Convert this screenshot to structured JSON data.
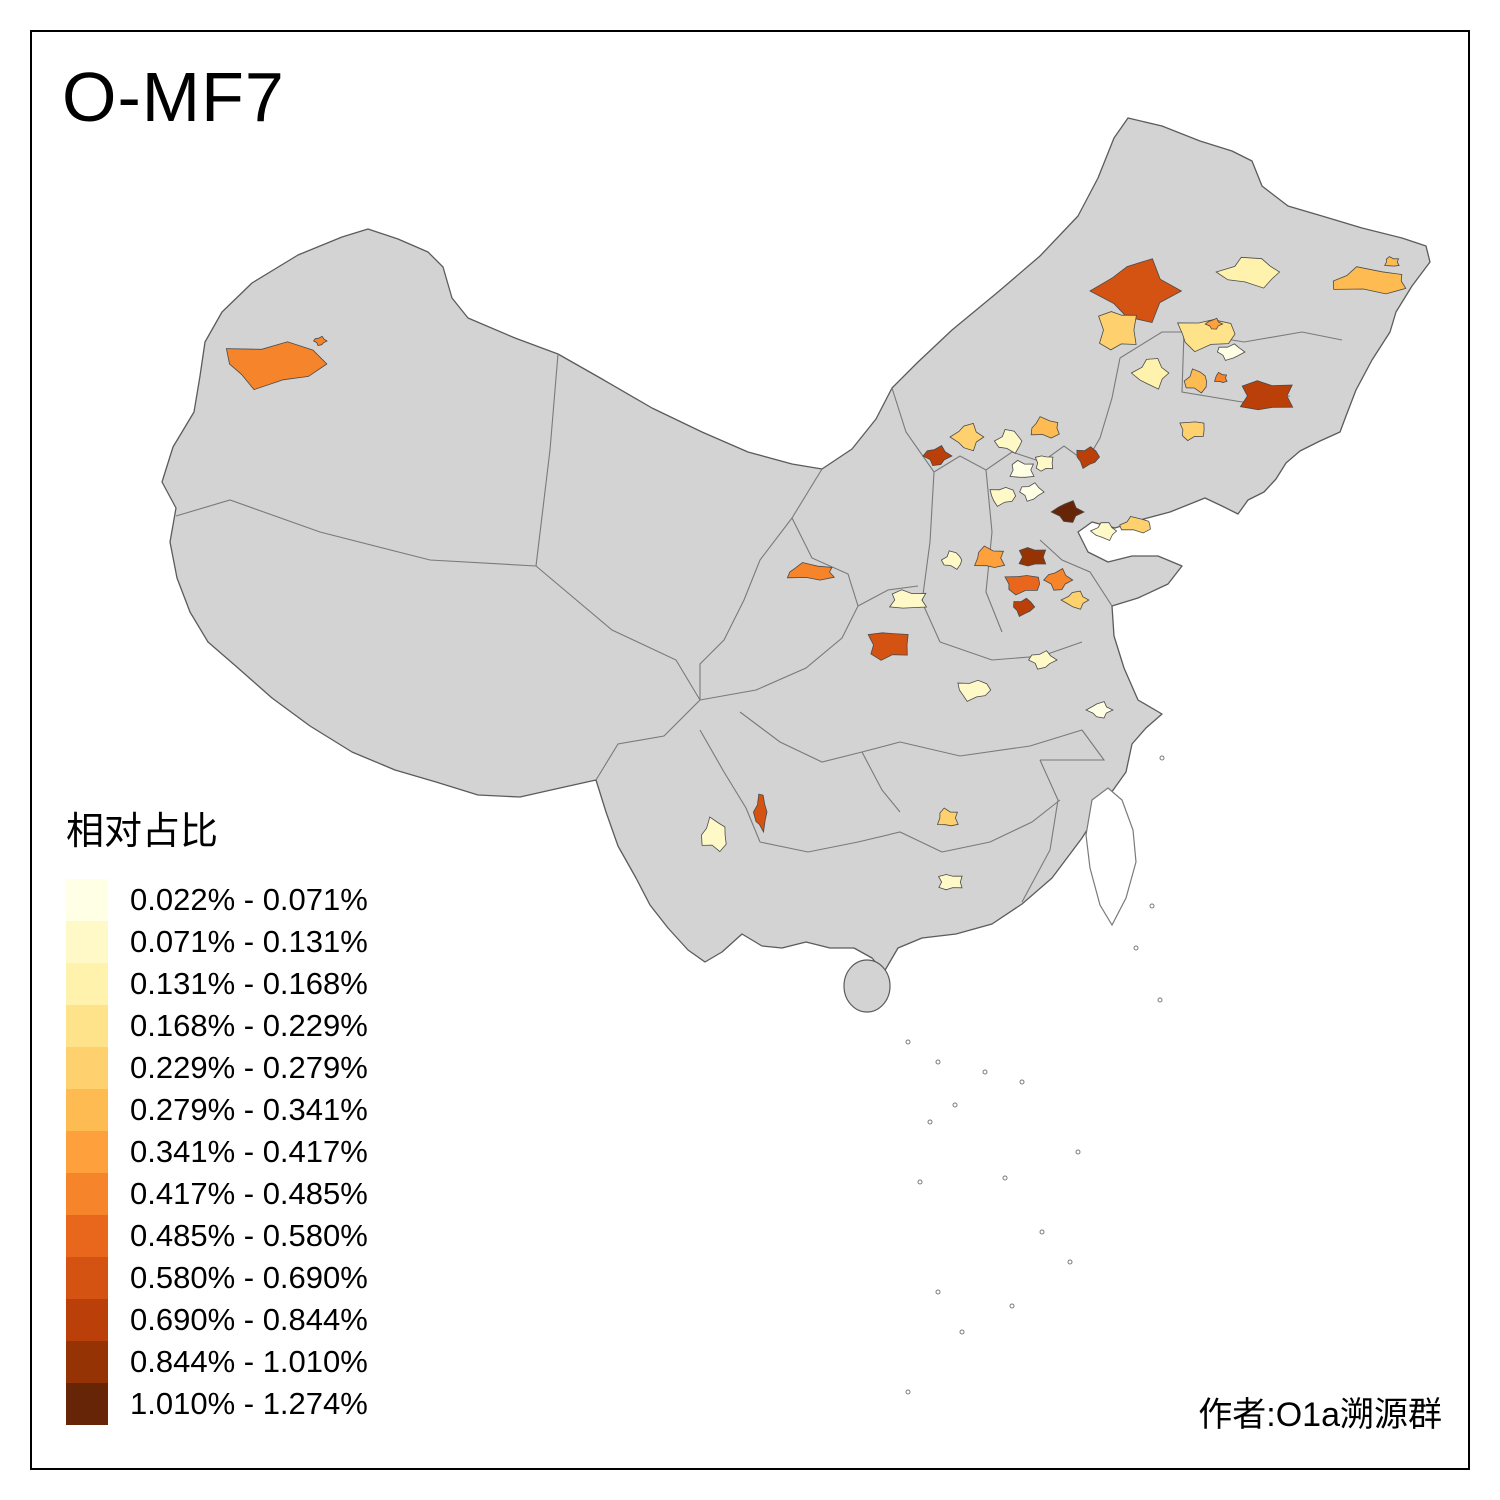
{
  "title": "O-MF7",
  "legend": {
    "title": "相对占比",
    "bins": [
      {
        "range": "0.022% - 0.071%",
        "color": "#FFFFE5"
      },
      {
        "range": "0.071% - 0.131%",
        "color": "#FFF9C8"
      },
      {
        "range": "0.131% - 0.168%",
        "color": "#FFF2AC"
      },
      {
        "range": "0.168% - 0.229%",
        "color": "#FEE38B"
      },
      {
        "range": "0.229% - 0.279%",
        "color": "#FED16E"
      },
      {
        "range": "0.279% - 0.341%",
        "color": "#FEBB52"
      },
      {
        "range": "0.341% - 0.417%",
        "color": "#FEA03C"
      },
      {
        "range": "0.417% - 0.485%",
        "color": "#F5842B"
      },
      {
        "range": "0.485% - 0.580%",
        "color": "#E8671D"
      },
      {
        "range": "0.580% - 0.690%",
        "color": "#D45212"
      },
      {
        "range": "0.690% - 0.844%",
        "color": "#BA3F09"
      },
      {
        "range": "0.844% - 1.010%",
        "color": "#963305"
      },
      {
        "range": "1.010% - 1.274%",
        "color": "#662506"
      }
    ]
  },
  "attribution": "作者:O1a溯源群",
  "map": {
    "base_fill": "#D3D3D3",
    "island_fill": "#FFFFFF",
    "outline": "#5B5B5B",
    "province_border": "#7A7A7A",
    "region_border": "#4A4A4A",
    "background": "#FFFFFF",
    "regions": [
      {
        "name": "w-xinjiang-large",
        "bin": 8
      },
      {
        "name": "w-xinjiang-dot",
        "bin": 8
      },
      {
        "name": "inner-mongolia-east-large",
        "bin": 10
      },
      {
        "name": "ne-pale-1",
        "bin": 3
      },
      {
        "name": "ne-orange-strip",
        "bin": 6
      },
      {
        "name": "ne-orange-dot",
        "bin": 6
      },
      {
        "name": "ne-light-1",
        "bin": 5
      },
      {
        "name": "ne-light-2",
        "bin": 4
      },
      {
        "name": "ne-white-cell",
        "bin": 1
      },
      {
        "name": "ne-orange-dot-2",
        "bin": 7
      },
      {
        "name": "ne-pale-2",
        "bin": 3
      },
      {
        "name": "ne-orange-2",
        "bin": 6
      },
      {
        "name": "ne-orange-dot-3",
        "bin": 8
      },
      {
        "name": "liaoning-dark",
        "bin": 11
      },
      {
        "name": "liaoning-light",
        "bin": 5
      },
      {
        "name": "hebei-ne-dark",
        "bin": 11
      },
      {
        "name": "shanxi-n-dark",
        "bin": 11
      },
      {
        "name": "hebei-nw-light",
        "bin": 5
      },
      {
        "name": "beijing-pale-1",
        "bin": 2
      },
      {
        "name": "hebei-light-orange",
        "bin": 6
      },
      {
        "name": "beijing-pale-2",
        "bin": 1
      },
      {
        "name": "tianjin-pale",
        "bin": 2
      },
      {
        "name": "hebei-pale-3",
        "bin": 2
      },
      {
        "name": "hebei-pale-4",
        "bin": 1
      },
      {
        "name": "bohai-coast-darkest",
        "bin": 13
      },
      {
        "name": "shandong-nw-pale",
        "bin": 2
      },
      {
        "name": "shandong-pen-light",
        "bin": 5
      },
      {
        "name": "hebei-s-orange",
        "bin": 7
      },
      {
        "name": "hebei-s-darkred",
        "bin": 12
      },
      {
        "name": "henan-n-orange",
        "bin": 9
      },
      {
        "name": "henan-n-darkred",
        "bin": 11
      },
      {
        "name": "shandong-w-orange",
        "bin": 8
      },
      {
        "name": "shandong-light",
        "bin": 5
      },
      {
        "name": "shanxi-pale",
        "bin": 2
      },
      {
        "name": "gansu-orange-bar",
        "bin": 8
      },
      {
        "name": "gansu-e-pale",
        "bin": 2
      },
      {
        "name": "shaanxi-orange",
        "bin": 10
      },
      {
        "name": "henan-sw-pale",
        "bin": 2
      },
      {
        "name": "henan-e-pale",
        "bin": 2
      },
      {
        "name": "jiangsu-n-pale",
        "bin": 1
      },
      {
        "name": "guizhou-n-red",
        "bin": 10
      },
      {
        "name": "yunnan-pale",
        "bin": 2
      },
      {
        "name": "hunan-light",
        "bin": 5
      },
      {
        "name": "guangdong-n-pale",
        "bin": 2
      }
    ]
  }
}
